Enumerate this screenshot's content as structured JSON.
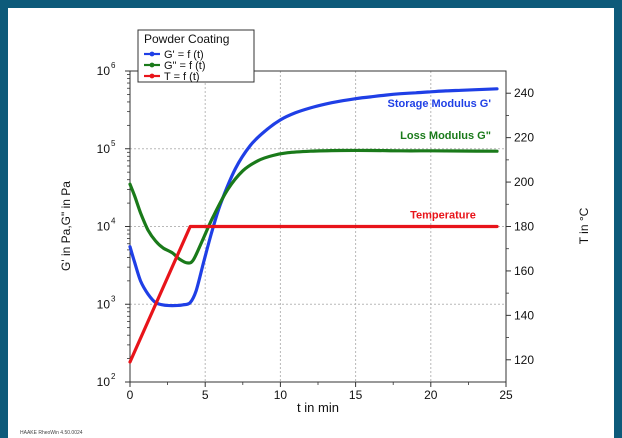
{
  "chart_data": {
    "type": "line",
    "legend": {
      "title": "Powder Coating",
      "placement": "top-left",
      "entries": [
        {
          "label": "G' = f (t)",
          "color": "#1f3fe6"
        },
        {
          "label": "G\" = f (t)",
          "color": "#1a7a1a"
        },
        {
          "label": "T = f (t)",
          "color": "#e8141a"
        }
      ]
    },
    "xlabel": "t in min",
    "ylabel_left": "G' in Pa,G\" in Pa",
    "ylabel_right": "T in °C",
    "xlim": [
      0,
      25
    ],
    "ylim_left": [
      100,
      1000000
    ],
    "ylim_left_scale": "log",
    "ylim_right": [
      110,
      250
    ],
    "x_ticks": [
      0,
      5,
      10,
      15,
      20,
      25
    ],
    "x_tick_labels": [
      "0",
      "5",
      "10",
      "15",
      "20",
      "25"
    ],
    "y_left_tick_labels": [
      {
        "base": "10",
        "exp": "2",
        "value": 100
      },
      {
        "base": "10",
        "exp": "3",
        "value": 1000
      },
      {
        "base": "10",
        "exp": "4",
        "value": 10000
      },
      {
        "base": "10",
        "exp": "5",
        "value": 100000
      },
      {
        "base": "10",
        "exp": "6",
        "value": 1000000
      }
    ],
    "y_right_ticks": [
      120,
      140,
      160,
      180,
      200,
      220,
      240
    ],
    "y_right_tick_labels": [
      "120",
      "140",
      "160",
      "180",
      "200",
      "220",
      "240"
    ],
    "grid": true,
    "series": [
      {
        "name": "G' = f (t)",
        "annotation": "Storage Modulus G'",
        "axis": "left",
        "color": "#1f3fe6",
        "x": [
          0,
          0.3,
          0.7,
          1.2,
          1.7,
          2.2,
          2.8,
          3.5,
          4.0,
          4.4,
          4.9,
          5.4,
          6.0,
          7.0,
          8.0,
          9.0,
          10.0,
          11.0,
          12.0,
          13.0,
          14.0,
          15.0,
          16.0,
          17.0,
          18.0,
          19.0,
          20.0,
          21.0,
          22.0,
          23.0,
          24.4
        ],
        "y": [
          5500,
          3500,
          2000,
          1350,
          1050,
          980,
          960,
          980,
          1050,
          1500,
          3500,
          8000,
          19000,
          55000,
          110000,
          170000,
          235000,
          290000,
          335000,
          375000,
          410000,
          440000,
          465000,
          490000,
          510000,
          525000,
          540000,
          555000,
          565000,
          575000,
          590000
        ]
      },
      {
        "name": "G\" = f (t)",
        "annotation": "Loss Modulus G\"",
        "axis": "left",
        "color": "#1a7a1a",
        "x": [
          0,
          0.3,
          0.7,
          1.2,
          1.7,
          2.2,
          2.8,
          3.3,
          3.8,
          4.2,
          4.8,
          5.5,
          6.5,
          7.5,
          8.5,
          9.5,
          10.5,
          12.0,
          14.0,
          16.0,
          18.0,
          20.0,
          22.0,
          24.4
        ],
        "y": [
          35000,
          25000,
          15000,
          9000,
          6500,
          5300,
          4600,
          3800,
          3400,
          3700,
          6500,
          13000,
          30000,
          52000,
          70000,
          82000,
          89000,
          93000,
          95000,
          95000,
          94000,
          94000,
          93500,
          93000
        ]
      },
      {
        "name": "T = f (t)",
        "annotation": "Temperature",
        "axis": "right",
        "color": "#e8141a",
        "x": [
          0,
          4.0,
          24.4
        ],
        "y": [
          119,
          180,
          180
        ]
      }
    ]
  },
  "footer_text": "HAAKE RheoWin 4.50.0024"
}
